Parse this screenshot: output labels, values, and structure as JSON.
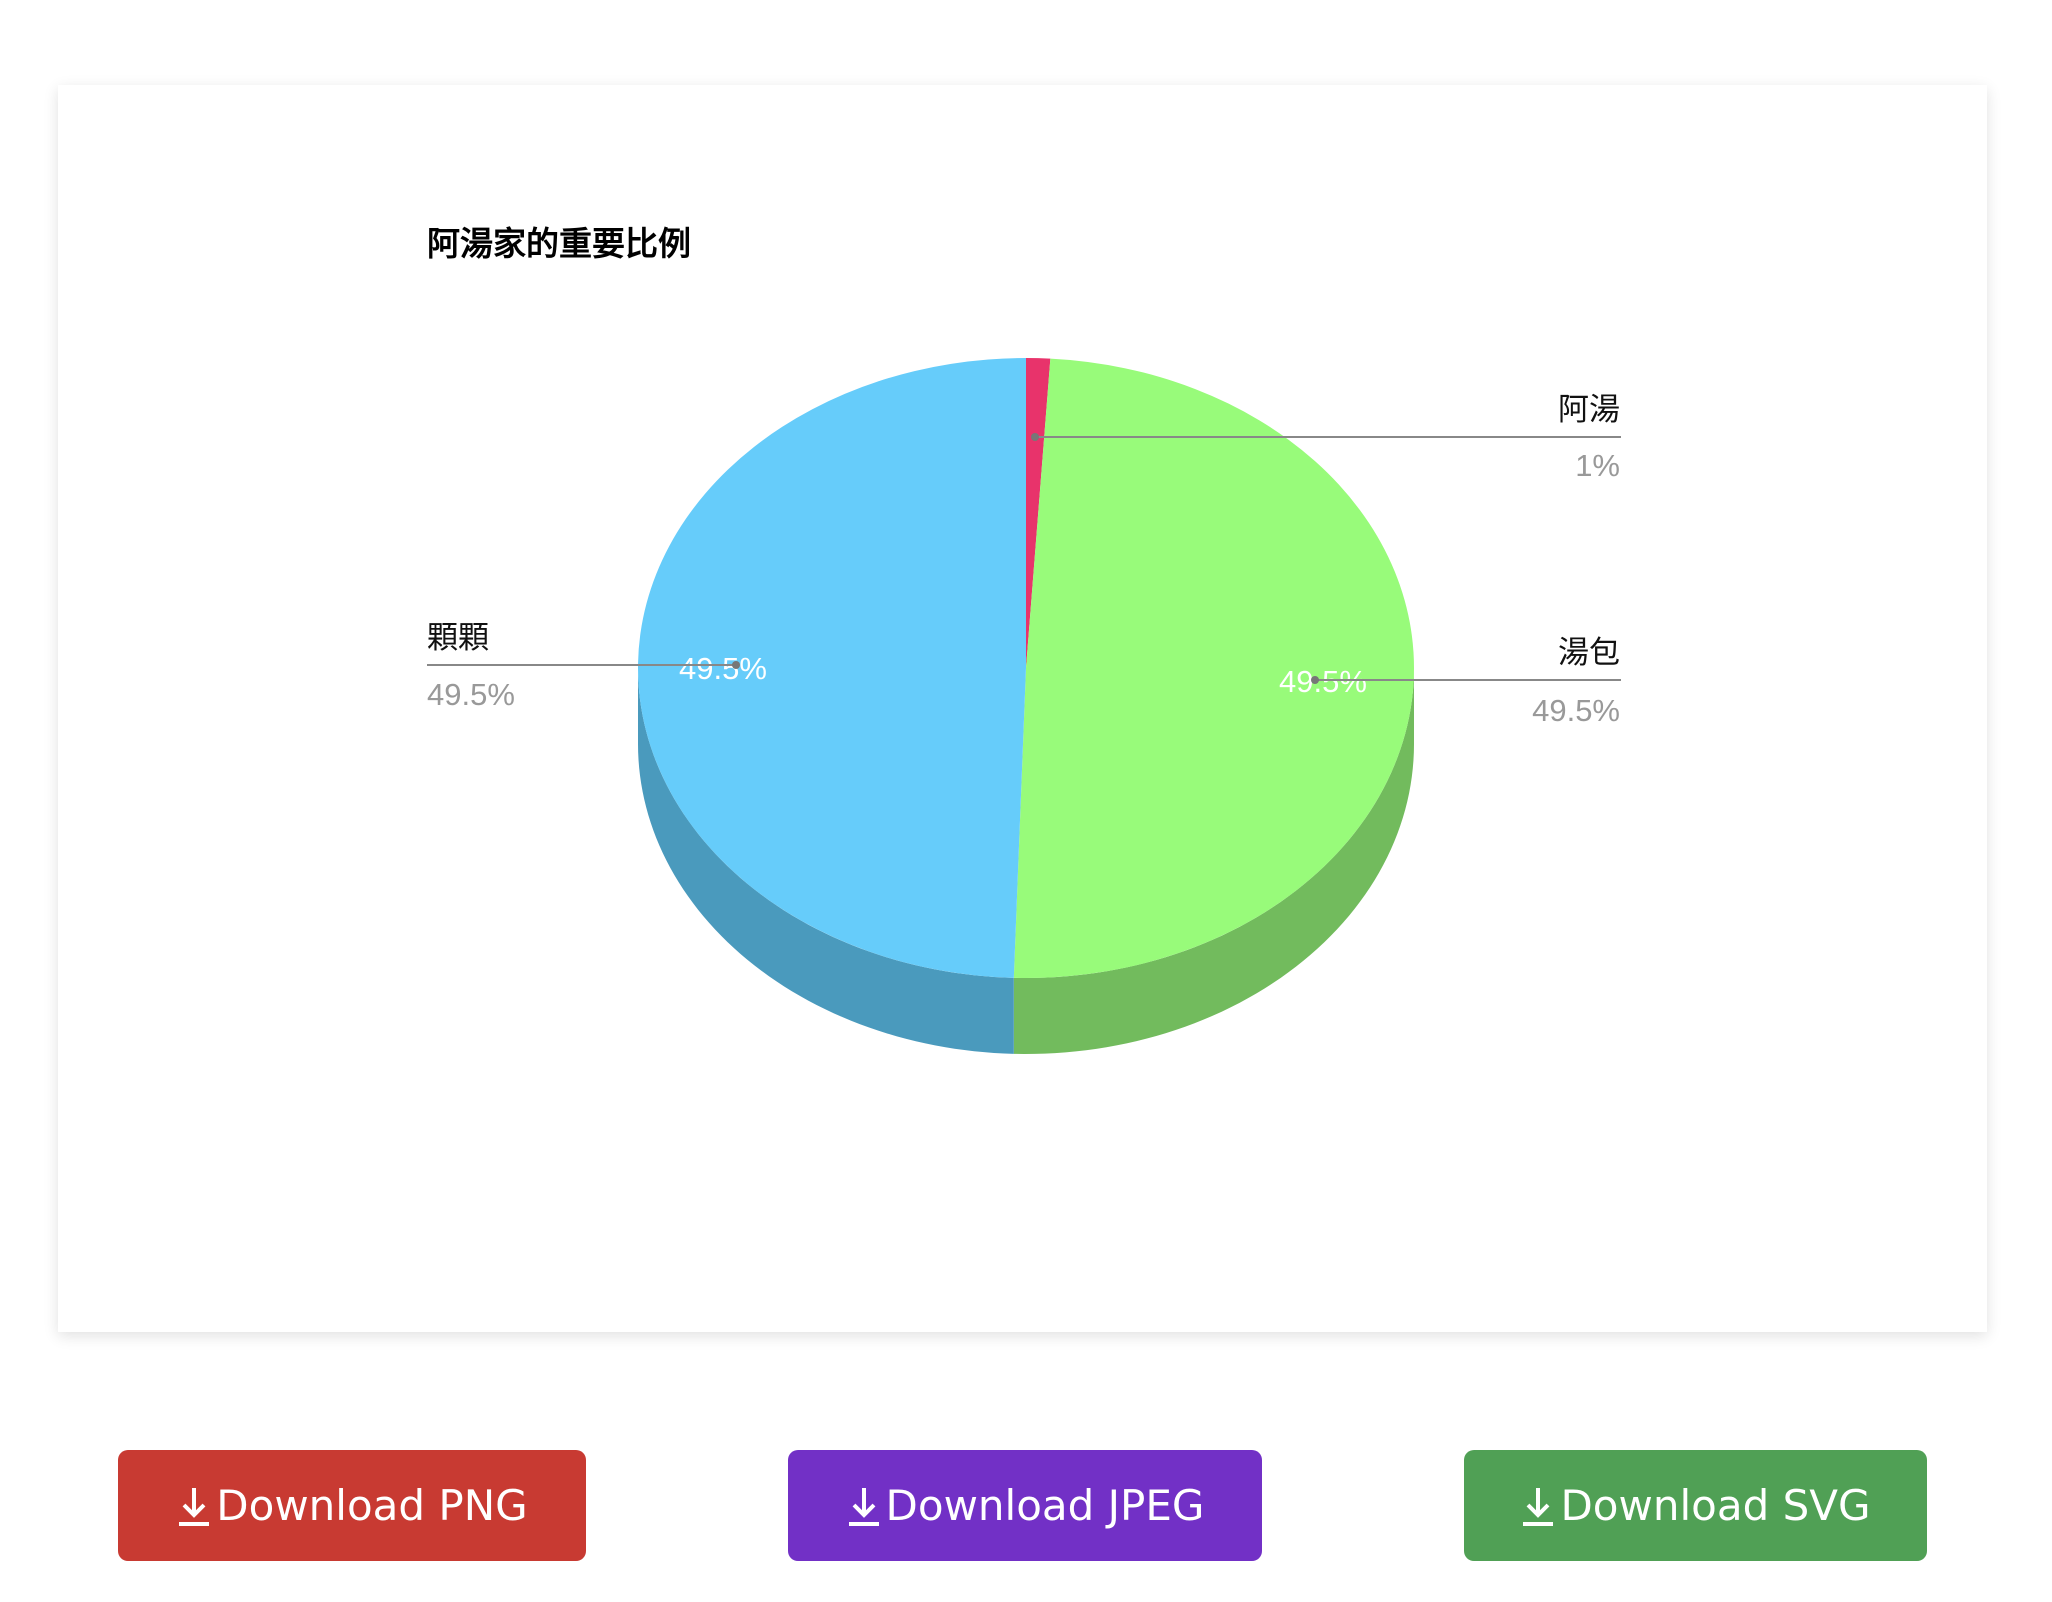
{
  "chart_data": {
    "type": "pie",
    "style": "3d",
    "title": "阿湯家的重要比例",
    "slices": [
      {
        "label": "阿湯",
        "value": 1,
        "display": "1%",
        "color": "#e8336b",
        "side_color": "#b0254f",
        "inner_label": ""
      },
      {
        "label": "湯包",
        "value": 49.5,
        "display": "49.5%",
        "color": "#98fb7a",
        "side_color": "#72bb5d",
        "inner_label": "49.5%"
      },
      {
        "label": "顆顆",
        "value": 49.5,
        "display": "49.5%",
        "color": "#66ccfa",
        "side_color": "#4a9abd",
        "inner_label": "49.5%"
      }
    ],
    "legend": "outside labels with leader lines"
  },
  "buttons": [
    {
      "label": "Download PNG",
      "color": "#c83a32",
      "icon": "download-icon"
    },
    {
      "label": "Download JPEG",
      "color": "#7230c6",
      "icon": "download-icon"
    },
    {
      "label": "Download SVG",
      "color": "#50a055",
      "icon": "download-icon"
    }
  ]
}
